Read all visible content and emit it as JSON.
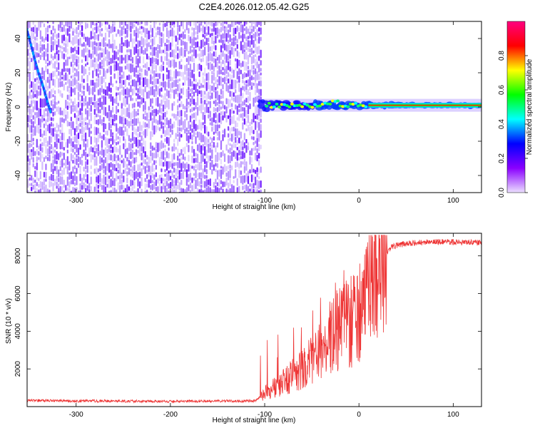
{
  "title": "C2E4.2026.012.05.42.G25",
  "chart_data": [
    {
      "type": "heatmap",
      "xlabel": "Height of straight line (km)",
      "ylabel": "Frequency (Hz)",
      "xlim": [
        -352,
        130
      ],
      "ylim": [
        -50,
        50
      ],
      "xticks": [
        -300,
        -200,
        -100,
        0,
        100
      ],
      "yticks": [
        -40,
        -20,
        0,
        20,
        40
      ],
      "noise_region": [
        -352,
        -103
      ],
      "carrier_freq": 1,
      "carrier_start": -105,
      "meteor_track": [
        [
          -352,
          45
        ],
        [
          -345,
          30
        ],
        [
          -340,
          20
        ],
        [
          -335,
          12
        ],
        [
          -330,
          2
        ],
        [
          -327,
          -3
        ]
      ],
      "colorbar": {
        "label": "Normalized spectral amplitude",
        "range": [
          0,
          1
        ],
        "ticks": [
          0.0,
          0.2,
          0.4,
          0.6,
          0.8
        ],
        "tick_labels": [
          "0.0",
          "0.2",
          "0.4",
          "0.6",
          "0.8"
        ],
        "colors": [
          "#ece0ff",
          "#8a00ff",
          "#0000ff",
          "#00ffff",
          "#00ff00",
          "#ffff00",
          "#ff0000",
          "#ff0080"
        ]
      }
    },
    {
      "type": "line",
      "xlabel": "Height of straight line (km)",
      "ylabel": "SNR (10 * v/v)",
      "xlim": [
        -352,
        130
      ],
      "ylim": [
        0,
        9200
      ],
      "xticks": [
        -300,
        -200,
        -100,
        0,
        100
      ],
      "yticks": [
        2000,
        4000,
        6000,
        8000
      ],
      "color": "#ee3333",
      "trend": {
        "x": [
          -352,
          -300,
          -200,
          -110,
          -100,
          -80,
          -60,
          -40,
          -25,
          -15,
          -5,
          5,
          15,
          25,
          35,
          50,
          80,
          130
        ],
        "y": [
          330,
          300,
          280,
          300,
          700,
          1300,
          2000,
          3000,
          4000,
          4300,
          4600,
          5400,
          6600,
          7900,
          8500,
          8650,
          8750,
          8700
        ]
      }
    }
  ]
}
